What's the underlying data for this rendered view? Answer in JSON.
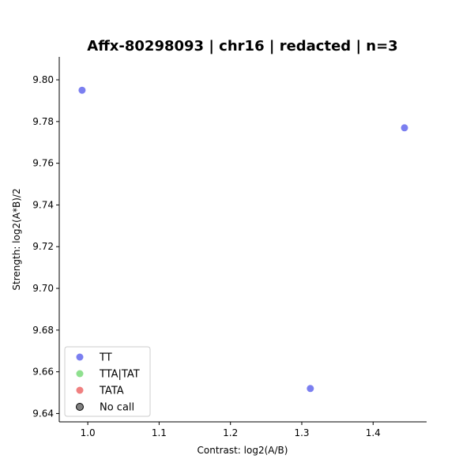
{
  "chart_data": {
    "type": "scatter",
    "title": "Affx-80298093 | chr16 | redacted | n=3",
    "xlabel": "Contrast: log2(A/B)",
    "ylabel": "Strength: log2(A*B)/2",
    "xlim": [
      0.96,
      1.475
    ],
    "ylim": [
      9.636,
      9.811
    ],
    "xticks": [
      1.0,
      1.1,
      1.2,
      1.3,
      1.4
    ],
    "xtick_labels": [
      "1.0",
      "1.1",
      "1.2",
      "1.3",
      "1.4"
    ],
    "yticks": [
      9.64,
      9.66,
      9.68,
      9.7,
      9.72,
      9.74,
      9.76,
      9.78,
      9.8
    ],
    "ytick_labels": [
      "9.64",
      "9.66",
      "9.68",
      "9.70",
      "9.72",
      "9.74",
      "9.76",
      "9.78",
      "9.80"
    ],
    "grid": false,
    "legend_position": "lower-left",
    "series": [
      {
        "name": "TT",
        "color": "#7b7ff0",
        "points": [
          [
            0.992,
            9.795
          ],
          [
            1.444,
            9.777
          ],
          [
            1.312,
            9.652
          ]
        ]
      },
      {
        "name": "TTA|TAT",
        "color": "#8fe08f",
        "points": []
      },
      {
        "name": "TATA",
        "color": "#f08080",
        "points": []
      },
      {
        "name": "No call",
        "color": "#808080",
        "points": []
      }
    ]
  }
}
